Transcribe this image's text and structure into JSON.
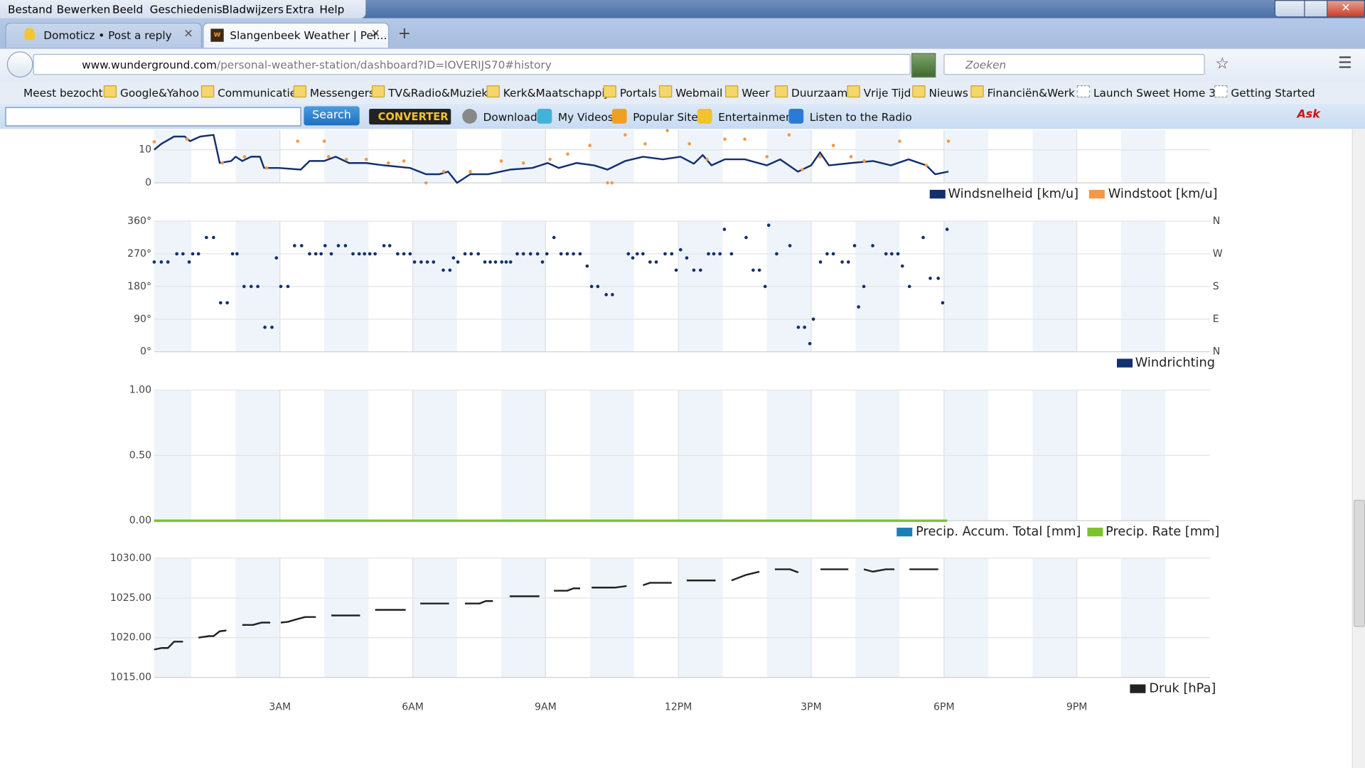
{
  "menu": [
    "Bestand",
    "Bewerken",
    "Beeld",
    "Geschiedenis",
    "Bladwijzers",
    "Extra",
    "Help"
  ],
  "tabs": [
    "Domoticz • Post a reply",
    "Slangenbeek Weather | Per..."
  ],
  "url": {
    "host": "www.wunderground.com",
    "path": "/personal-weather-station/dashboard?ID=IOVERIJS70#history"
  },
  "search_placeholder": "Zoeken",
  "bookmarks": [
    "Meest bezocht",
    "Google&Yahoo",
    "Communicatie",
    "Messengers",
    "TV&Radio&Muziek",
    "Kerk&Maatschappij",
    "Portals",
    "Webmail",
    "Weer",
    "Duurzaam",
    "Vrije Tijd",
    "Nieuws",
    "Financiën&Werk",
    "Launch Sweet Home 3...",
    "Getting Started"
  ],
  "toolbar": {
    "button": "Search",
    "logo": "CONVERTER",
    "items": [
      "Download",
      "My Videos",
      "Popular Sites",
      "Entertainment",
      "Listen to the Radio"
    ]
  },
  "chart_data": [
    {
      "type": "line",
      "xlim": [
        0,
        24
      ],
      "ylim": [
        0,
        16
      ],
      "yticks": [
        0,
        10
      ],
      "series": [
        {
          "name": "Windsnelheid [km/u]",
          "color": "#12306e",
          "x": [
            0.16,
            0.32,
            0.61,
            0.85,
            0.97,
            1.2,
            1.5,
            1.64,
            1.9,
            2.0,
            2.15,
            2.35,
            2.55,
            2.64,
            2.98,
            3.47,
            3.67,
            4.0,
            4.26,
            4.56,
            4.95,
            5.35,
            5.94,
            6.3,
            6.6,
            6.8,
            7.0,
            7.3,
            7.7,
            8.2,
            8.7,
            9.05,
            9.3,
            9.7,
            10.1,
            10.4,
            10.8,
            11.2,
            11.65,
            12.05,
            12.35,
            12.55,
            12.75,
            13.05,
            13.5,
            14.0,
            14.3,
            14.7,
            15.0,
            15.2,
            15.4,
            15.9,
            16.4,
            16.8,
            17.2,
            17.6,
            17.8,
            18.1
          ],
          "values": [
            10,
            11.8,
            14,
            14,
            12.6,
            14,
            14.5,
            6,
            6.6,
            7.9,
            6.6,
            7.9,
            7.9,
            4.5,
            4.5,
            4,
            6.6,
            6.6,
            7.9,
            6,
            6,
            5.3,
            4.5,
            2.6,
            2.6,
            3.4,
            0,
            2.6,
            2.6,
            4,
            4.5,
            6,
            4.5,
            6,
            5.3,
            4,
            6.6,
            7.9,
            7.1,
            7.9,
            5.8,
            8.4,
            5.3,
            7.1,
            7.1,
            5.3,
            7.1,
            3.4,
            5.3,
            9.2,
            5.3,
            6,
            6.6,
            5.3,
            7.1,
            5.3,
            2.6,
            3.4
          ]
        },
        {
          "name": "Windstoot [km/u]",
          "color": "#f2994a",
          "type": "scatter",
          "x": [
            0.16,
            0.9,
            1.7,
            2.2,
            2.7,
            3.4,
            4.0,
            4.1,
            4.5,
            4.95,
            5.45,
            5.8,
            6.3,
            6.7,
            7.3,
            8.0,
            8.5,
            9.1,
            9.5,
            10.0,
            10.4,
            10.5,
            10.8,
            11.25,
            11.75,
            12.25,
            12.65,
            13.05,
            13.5,
            14.0,
            14.5,
            14.8,
            15.2,
            15.5,
            15.9,
            16.2,
            17.0,
            17.6,
            18.1
          ],
          "values": [
            12.4,
            13.2,
            6,
            7.9,
            4.5,
            12.6,
            12.6,
            7.9,
            7.1,
            7.1,
            6,
            6.6,
            0,
            3.4,
            3.4,
            6.6,
            6,
            7.1,
            8.7,
            11.3,
            0,
            0,
            14.5,
            11.8,
            15.8,
            11.8,
            7.1,
            13.2,
            13.2,
            7.9,
            14.5,
            4,
            7.9,
            11.3,
            7.9,
            6.6,
            12.6,
            5.3,
            12.6
          ]
        }
      ]
    },
    {
      "type": "scatter",
      "xlim": [
        0,
        24
      ],
      "ylim": [
        0,
        360
      ],
      "yticks": [
        {
          "value": 0,
          "label": "0°"
        },
        {
          "value": 90,
          "label": "90°"
        },
        {
          "value": 180,
          "label": "180°"
        },
        {
          "value": 270,
          "label": "270°"
        },
        {
          "value": 360,
          "label": "360°"
        }
      ],
      "y2lim": [
        0,
        360
      ],
      "y2ticks": [
        {
          "value": 0,
          "label": "N"
        },
        {
          "value": 90,
          "label": "E"
        },
        {
          "value": 180,
          "label": "S"
        },
        {
          "value": 270,
          "label": "W"
        },
        {
          "value": 360,
          "label": "N"
        }
      ],
      "series": [
        {
          "name": "Windrichting",
          "color": "#12306e",
          "x": [
            0.16,
            0.32,
            0.47,
            0.67,
            0.81,
            0.95,
            1.03,
            1.16,
            1.34,
            1.5,
            1.66,
            1.81,
            1.93,
            2.03,
            2.19,
            2.35,
            2.5,
            2.66,
            2.82,
            2.92,
            3.02,
            3.18,
            3.33,
            3.49,
            3.67,
            3.81,
            3.93,
            4.02,
            4.16,
            4.32,
            4.48,
            4.65,
            4.79,
            4.91,
            5.03,
            5.15,
            5.35,
            5.48,
            5.66,
            5.8,
            5.94,
            6.04,
            6.19,
            6.33,
            6.47,
            6.69,
            6.84,
            6.92,
            7.02,
            7.18,
            7.32,
            7.48,
            7.63,
            7.75,
            7.87,
            8.01,
            8.11,
            8.21,
            8.36,
            8.5,
            8.66,
            8.82,
            8.93,
            9.03,
            9.19,
            9.35,
            9.49,
            9.63,
            9.78,
            9.94,
            10.04,
            10.18,
            10.37,
            10.51,
            10.87,
            10.97,
            11.07,
            11.2,
            11.36,
            11.5,
            11.7,
            11.85,
            11.95,
            12.05,
            12.19,
            12.35,
            12.5,
            12.68,
            12.8,
            12.94,
            13.04,
            13.2,
            13.53,
            13.69,
            13.83,
            13.96,
            14.04,
            14.22,
            14.52,
            14.71,
            14.85,
            14.97,
            15.05,
            15.21,
            15.36,
            15.5,
            15.7,
            15.84,
            15.98,
            16.07,
            16.19,
            16.39,
            16.69,
            16.82,
            16.96,
            17.06,
            17.22,
            17.53,
            17.69,
            17.87,
            17.97,
            18.07
          ],
          "values": [
            247.5,
            247.5,
            247.5,
            270,
            270,
            247.5,
            270,
            270,
            315,
            315,
            135,
            135,
            270,
            270,
            180,
            180,
            180,
            67.5,
            67.5,
            258.75,
            180,
            180,
            292.5,
            292.5,
            270,
            270,
            270,
            292.5,
            270,
            292.5,
            292.5,
            270,
            270,
            270,
            270,
            270,
            292.5,
            292.5,
            270,
            270,
            270,
            247.5,
            247.5,
            247.5,
            247.5,
            225,
            225,
            258.75,
            247.5,
            270,
            270,
            270,
            247.5,
            247.5,
            247.5,
            247.5,
            247.5,
            247.5,
            270,
            270,
            270,
            270,
            247.5,
            270,
            315,
            270,
            270,
            270,
            270,
            236.25,
            180,
            180,
            157.5,
            157.5,
            270,
            258.75,
            270,
            270,
            247.5,
            247.5,
            270,
            270,
            225,
            281.25,
            258.75,
            225,
            225,
            270,
            270,
            270,
            337.5,
            270,
            315,
            225,
            225,
            180,
            348.75,
            270,
            292.5,
            67.5,
            67.5,
            22.5,
            90,
            247.5,
            270,
            270,
            247.5,
            247.5,
            292.5,
            123.75,
            180,
            292.5,
            270,
            270,
            270,
            236.25,
            180,
            315,
            202.5,
            202.5,
            135,
            337.5
          ]
        }
      ]
    },
    {
      "type": "line",
      "xlim": [
        0,
        24
      ],
      "ylim": [
        0,
        1
      ],
      "yticks": [
        {
          "value": 0,
          "label": "0.00"
        },
        {
          "value": 0.5,
          "label": "0.50"
        },
        {
          "value": 1,
          "label": "1.00"
        }
      ],
      "series": [
        {
          "name": "Precip. Accum. Total [mm]",
          "color": "#1b7fb8",
          "x": [
            0.16,
            18.07
          ],
          "values": [
            0,
            0
          ]
        },
        {
          "name": "Precip. Rate [mm]",
          "color": "#7cc22e",
          "x": [
            0.16,
            18.07
          ],
          "values": [
            0,
            0
          ]
        }
      ]
    },
    {
      "type": "line",
      "xlim": [
        0,
        24
      ],
      "ylim": [
        1015,
        1030
      ],
      "yticks": [
        {
          "value": 1015,
          "label": "1015.00"
        },
        {
          "value": 1020,
          "label": "1020.00"
        },
        {
          "value": 1025,
          "label": "1025.00"
        },
        {
          "value": 1030,
          "label": "1030.00"
        }
      ],
      "xticks": [
        {
          "value": 3,
          "label": "3AM"
        },
        {
          "value": 6,
          "label": "6AM"
        },
        {
          "value": 9,
          "label": "9AM"
        },
        {
          "value": 12,
          "label": "12PM"
        },
        {
          "value": 15,
          "label": "3PM"
        },
        {
          "value": 18,
          "label": "6PM"
        },
        {
          "value": 21,
          "label": "9PM"
        }
      ],
      "series": [
        {
          "name": "Druk [hPa]",
          "color": "#222222",
          "x": [
            0.16,
            0.32,
            0.47,
            0.61,
            0.81,
            null,
            1.16,
            1.4,
            1.5,
            1.64,
            1.79,
            null,
            2.15,
            2.39,
            2.58,
            2.78,
            null,
            3.02,
            3.18,
            3.37,
            3.57,
            3.81,
            null,
            4.16,
            4.81,
            null,
            5.15,
            5.84,
            null,
            6.17,
            6.82,
            null,
            7.18,
            7.51,
            7.65,
            7.81,
            null,
            8.19,
            8.86,
            null,
            9.19,
            9.49,
            9.63,
            9.78,
            null,
            10.04,
            10.57,
            10.83,
            null,
            11.2,
            11.36,
            11.85,
            null,
            12.19,
            12.84,
            null,
            13.2,
            13.53,
            13.83,
            null,
            14.18,
            14.52,
            14.71,
            null,
            15.21,
            15.84,
            null,
            16.19,
            16.39,
            16.69,
            16.88,
            null,
            17.22,
            17.87
          ],
          "values": [
            1018.5,
            1018.7,
            1018.7,
            1019.5,
            1019.5,
            null,
            1020,
            1020.2,
            1020.2,
            1020.8,
            1020.9,
            null,
            1021.6,
            1021.6,
            1021.9,
            1021.9,
            null,
            1021.9,
            1022,
            1022.3,
            1022.6,
            1022.6,
            null,
            1022.8,
            1022.8,
            null,
            1023.5,
            1023.5,
            null,
            1024.3,
            1024.3,
            null,
            1024.3,
            1024.3,
            1024.6,
            1024.6,
            null,
            1025.2,
            1025.2,
            null,
            1025.9,
            1025.9,
            1026.2,
            1026.2,
            null,
            1026.3,
            1026.3,
            1026.5,
            null,
            1026.6,
            1026.9,
            1026.9,
            null,
            1027.2,
            1027.2,
            null,
            1027.2,
            1027.9,
            1028.3,
            null,
            1028.6,
            1028.6,
            1028.2,
            null,
            1028.6,
            1028.6,
            null,
            1028.6,
            1028.3,
            1028.6,
            1028.6,
            null,
            1028.6,
            1028.6
          ]
        }
      ]
    }
  ]
}
